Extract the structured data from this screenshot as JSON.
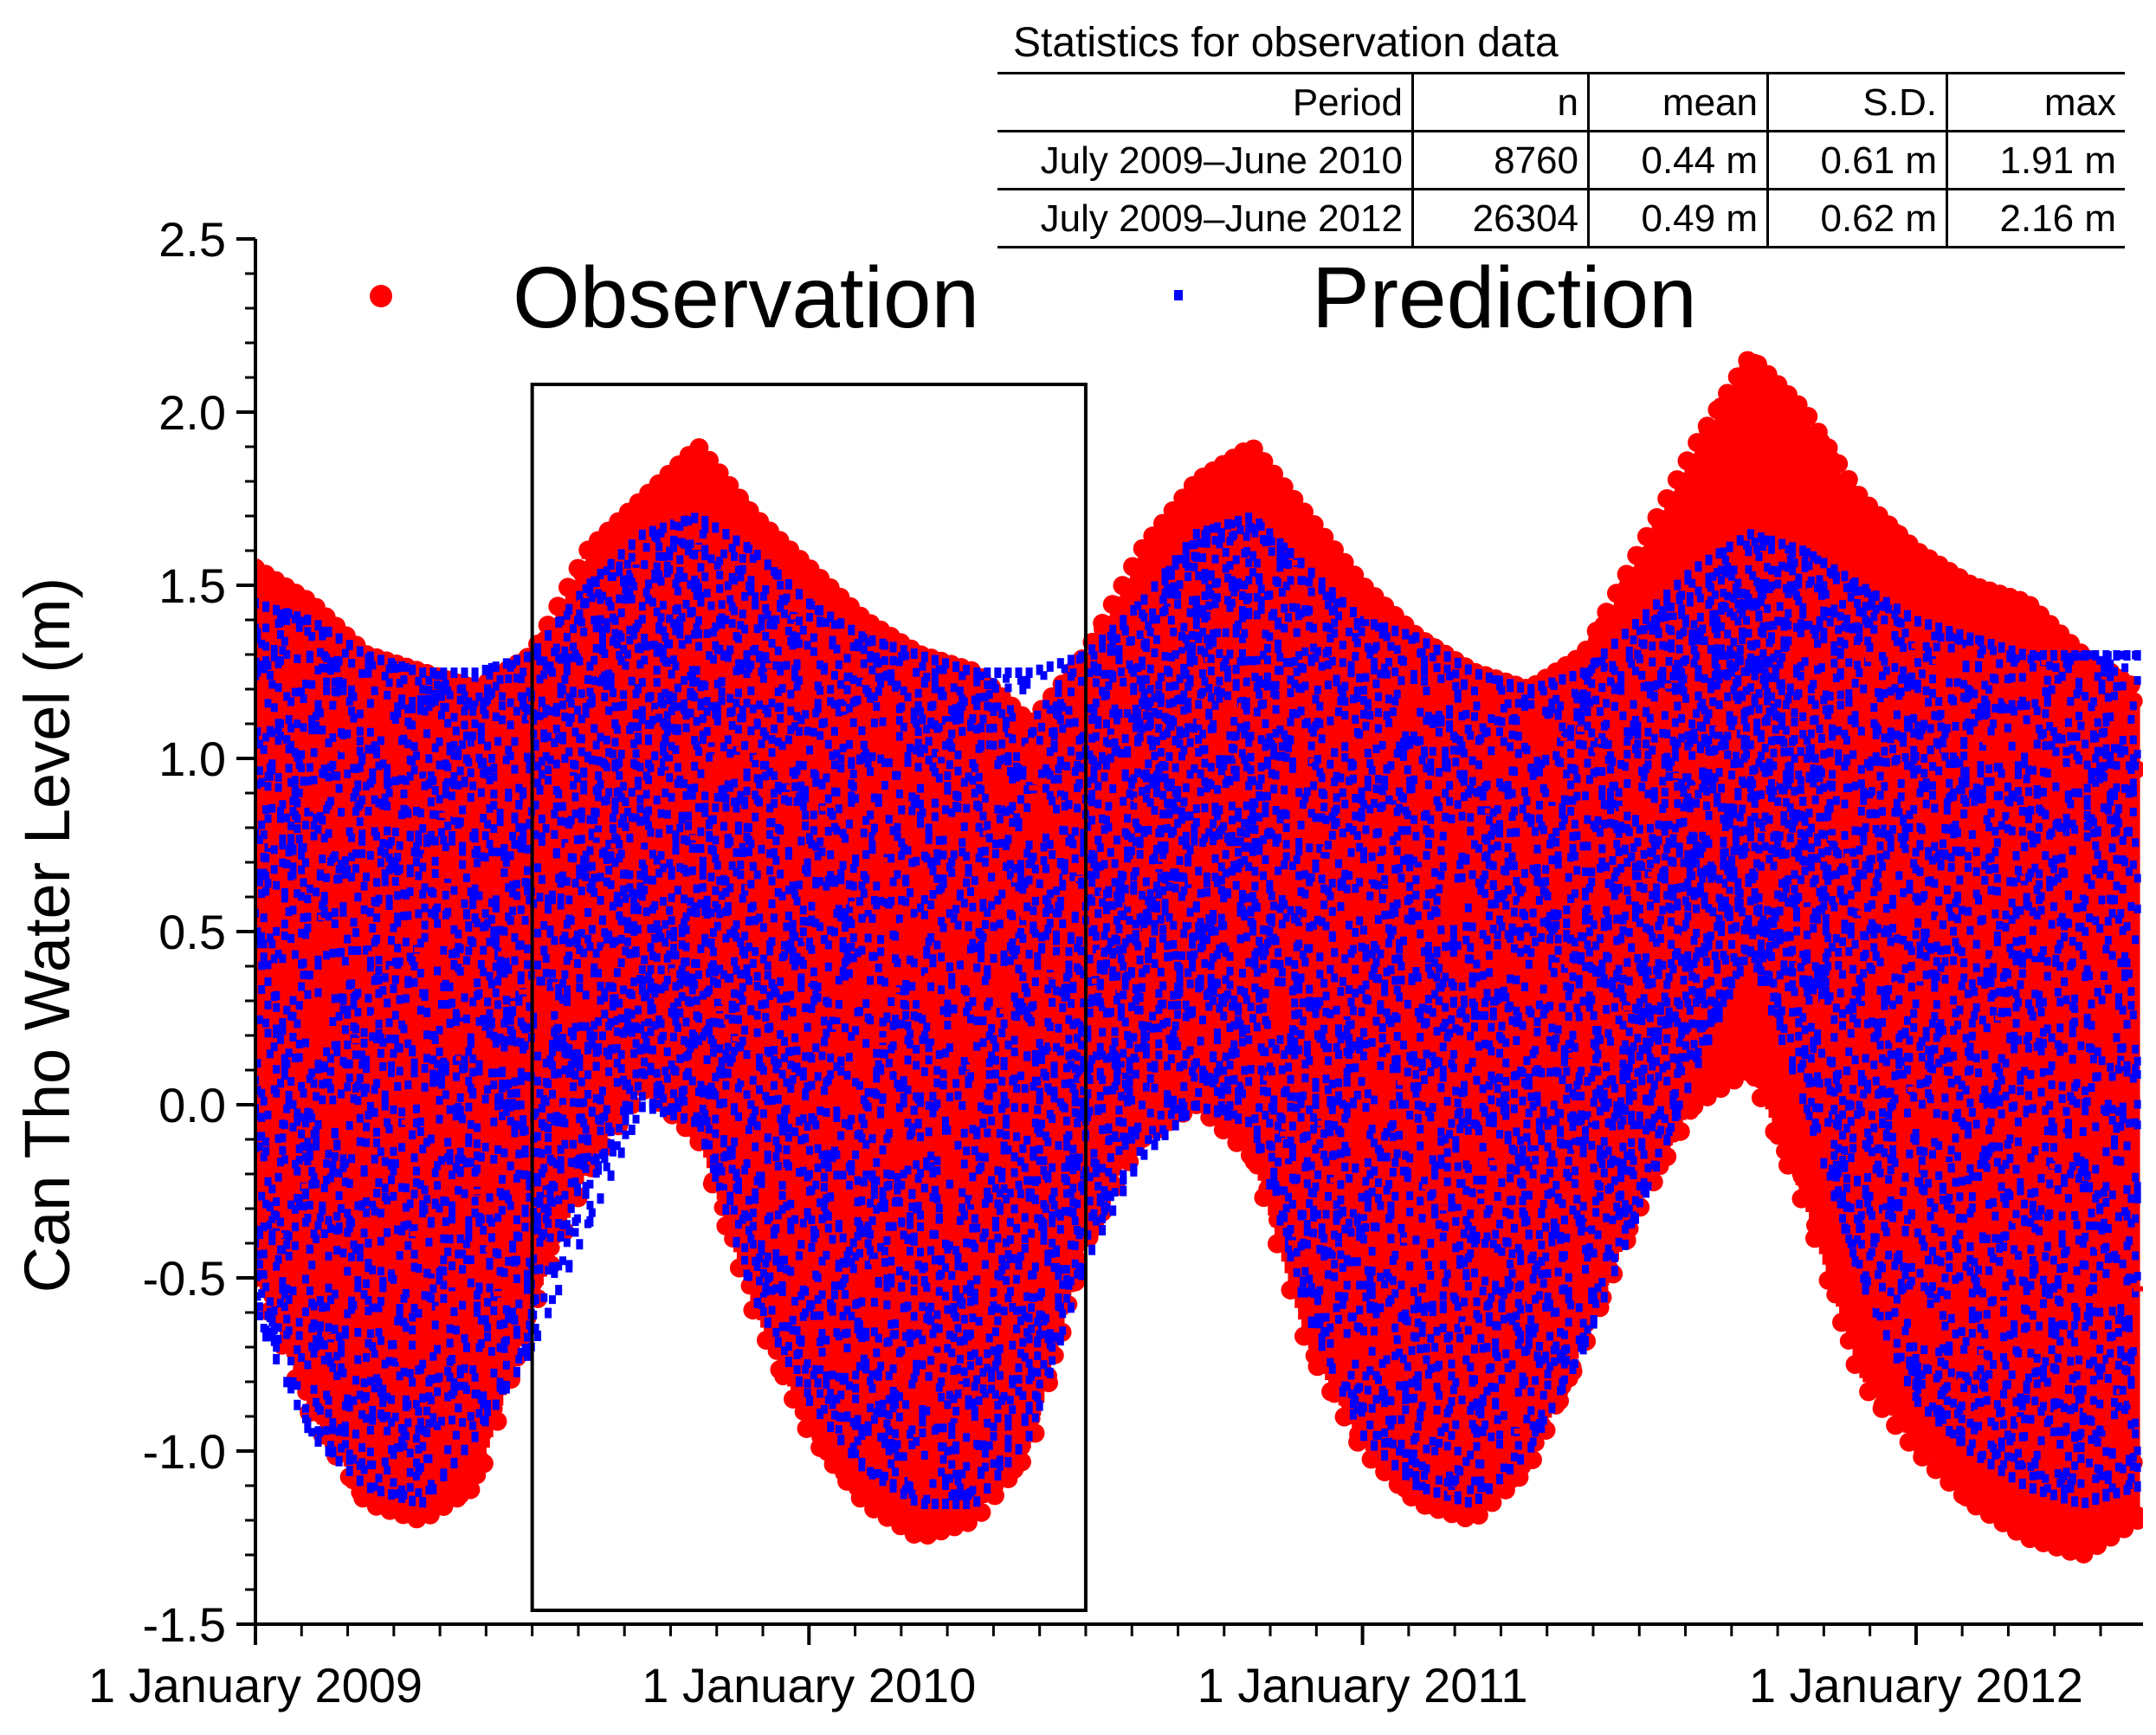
{
  "chart_data": {
    "type": "scatter",
    "title": "",
    "xlabel": "",
    "ylabel": "Can Tho Water Level (m)",
    "xlim": [
      "2009-01-01",
      "2012-06-30"
    ],
    "ylim": [
      -1.5,
      2.5
    ],
    "yticks": [
      -1.5,
      -1.0,
      -0.5,
      0.0,
      0.5,
      1.0,
      1.5,
      2.0,
      2.5
    ],
    "ytick_labels": [
      "-1.5",
      "-1.0",
      "-0.5",
      "0.0",
      "0.5",
      "1.0",
      "1.5",
      "2.0",
      "2.5"
    ],
    "xtick_labels": [
      "1 January 2009",
      "1 January 2010",
      "1 January 2011",
      "1 January 2012"
    ],
    "xticks_years": [
      2009,
      2010,
      2011,
      2012
    ],
    "legend": [
      "Observation",
      "Prediction"
    ],
    "highlight_box": {
      "label": "July 2009–June 2010",
      "x_range_years": [
        2009.5,
        2010.5
      ],
      "y_range": [
        -1.46,
        2.08
      ]
    },
    "series": [
      {
        "name": "Observation",
        "color": "#ff0000",
        "marker": "circle",
        "envelope": {
          "x_years": [
            2009.0,
            2009.1,
            2009.2,
            2009.3,
            2009.4,
            2009.5,
            2009.6,
            2009.7,
            2009.8,
            2009.9,
            2010.0,
            2010.1,
            2010.2,
            2010.3,
            2010.4,
            2010.5,
            2010.6,
            2010.7,
            2010.8,
            2010.9,
            2011.0,
            2011.1,
            2011.2,
            2011.3,
            2011.4,
            2011.5,
            2011.6,
            2011.7,
            2011.8,
            2011.9,
            2012.0,
            2012.1,
            2012.2,
            2012.3,
            2012.4
          ],
          "upper": [
            1.55,
            1.45,
            1.3,
            1.25,
            1.2,
            1.3,
            1.6,
            1.75,
            1.9,
            1.7,
            1.55,
            1.4,
            1.3,
            1.25,
            1.1,
            1.3,
            1.6,
            1.8,
            1.9,
            1.7,
            1.5,
            1.35,
            1.25,
            1.2,
            1.3,
            1.6,
            1.9,
            2.16,
            2.0,
            1.75,
            1.6,
            1.5,
            1.45,
            1.3,
            1.2
          ],
          "lower": [
            -0.5,
            -0.9,
            -1.15,
            -1.2,
            -1.1,
            -0.6,
            -0.2,
            0.05,
            -0.1,
            -0.6,
            -0.95,
            -1.15,
            -1.25,
            -1.2,
            -1.0,
            -0.4,
            -0.1,
            0.0,
            -0.15,
            -0.7,
            -1.0,
            -1.15,
            -1.2,
            -1.05,
            -0.7,
            -0.3,
            0.0,
            0.1,
            -0.3,
            -0.8,
            -1.0,
            -1.15,
            -1.25,
            -1.3,
            -1.2
          ]
        }
      },
      {
        "name": "Prediction",
        "color": "#0000ff",
        "marker": "square",
        "envelope": {
          "x_years": [
            2009.0,
            2009.1,
            2009.2,
            2009.3,
            2009.4,
            2009.5,
            2009.6,
            2009.7,
            2009.8,
            2009.9,
            2010.0,
            2010.1,
            2010.2,
            2010.3,
            2010.4,
            2010.5,
            2010.6,
            2010.7,
            2010.8,
            2010.9,
            2011.0,
            2011.1,
            2011.2,
            2011.3,
            2011.4,
            2011.5,
            2011.6,
            2011.7,
            2011.8,
            2011.9,
            2012.0,
            2012.1,
            2012.2,
            2012.3,
            2012.4
          ],
          "upper": [
            1.45,
            1.4,
            1.3,
            1.25,
            1.25,
            1.3,
            1.5,
            1.65,
            1.7,
            1.6,
            1.45,
            1.35,
            1.3,
            1.25,
            1.25,
            1.3,
            1.45,
            1.65,
            1.7,
            1.55,
            1.4,
            1.35,
            1.25,
            1.2,
            1.25,
            1.4,
            1.55,
            1.65,
            1.6,
            1.5,
            1.4,
            1.35,
            1.3,
            1.3,
            1.3
          ],
          "lower": [
            -0.6,
            -0.95,
            -1.1,
            -1.15,
            -0.95,
            -0.7,
            -0.35,
            0.0,
            -0.05,
            -0.55,
            -0.85,
            -1.05,
            -1.15,
            -1.15,
            -0.95,
            -0.45,
            -0.15,
            0.0,
            -0.05,
            -0.6,
            -0.95,
            -1.1,
            -1.15,
            -1.0,
            -0.7,
            -0.3,
            0.1,
            0.45,
            0.0,
            -0.5,
            -0.85,
            -1.0,
            -1.1,
            -1.15,
            -1.1
          ]
        }
      }
    ],
    "statistics_table": {
      "title": "Statistics for observation data",
      "columns": [
        "Period",
        "n",
        "mean",
        "S.D.",
        "max"
      ],
      "rows": [
        [
          "July 2009–June 2010",
          "8760",
          "0.44 m",
          "0.61 m",
          "1.91 m"
        ],
        [
          "July 2009–June 2012",
          "26304",
          "0.49 m",
          "0.62 m",
          "2.16 m"
        ]
      ]
    }
  }
}
